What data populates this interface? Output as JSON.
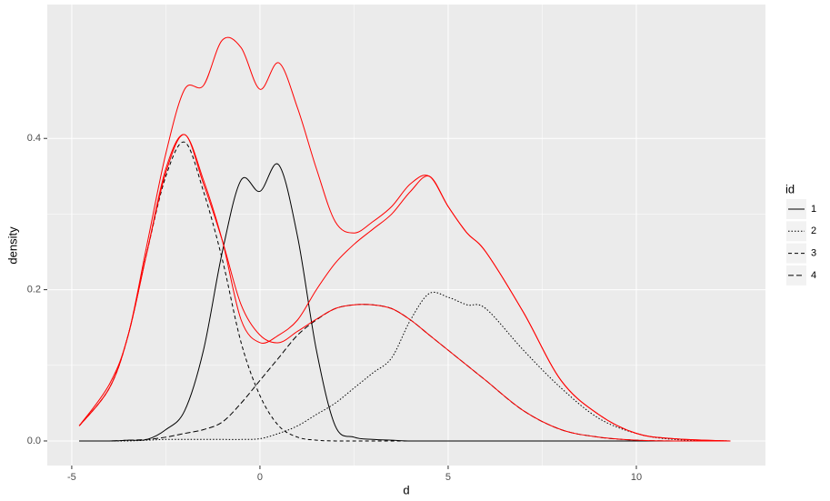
{
  "chart_data": {
    "type": "line",
    "x_label": "d",
    "y_label": "density",
    "legend_title": "id",
    "x": [
      -4.8,
      -4,
      -3.5,
      -3,
      -2.5,
      -2,
      -1.5,
      -1,
      -0.5,
      0,
      0.5,
      1,
      1.5,
      2,
      2.5,
      3,
      3.5,
      4,
      4.5,
      5,
      5.5,
      6,
      7,
      8,
      9,
      10,
      11,
      12.5
    ],
    "series": [
      {
        "name": "1",
        "color": "#000000",
        "linetype": "solid",
        "values": [
          0,
          0,
          0.001,
          0.002,
          0.015,
          0.04,
          0.12,
          0.25,
          0.345,
          0.33,
          0.365,
          0.27,
          0.12,
          0.02,
          0.005,
          0.002,
          0.001,
          0,
          0,
          0,
          0,
          0,
          0,
          0,
          0,
          0,
          0,
          0
        ]
      },
      {
        "name": "2",
        "color": "#000000",
        "linetype": "dotted",
        "values": [
          0,
          0,
          0,
          0.001,
          0.002,
          0.002,
          0.002,
          0.002,
          0.002,
          0.003,
          0.01,
          0.02,
          0.035,
          0.05,
          0.07,
          0.09,
          0.11,
          0.16,
          0.195,
          0.19,
          0.18,
          0.175,
          0.12,
          0.07,
          0.03,
          0.01,
          0.002,
          0
        ]
      },
      {
        "name": "3",
        "color": "#000000",
        "linetype": "dashed",
        "values": [
          0.02,
          0.07,
          0.14,
          0.25,
          0.35,
          0.395,
          0.33,
          0.24,
          0.13,
          0.06,
          0.02,
          0.005,
          0.001,
          0,
          0,
          0,
          0,
          0,
          0,
          0,
          0,
          0,
          0,
          0,
          0,
          0,
          0,
          0
        ]
      },
      {
        "name": "4",
        "color": "#000000",
        "linetype": "longdash",
        "values": [
          0,
          0,
          0.001,
          0.002,
          0.005,
          0.01,
          0.015,
          0.025,
          0.05,
          0.08,
          0.11,
          0.14,
          0.16,
          0.175,
          0.18,
          0.18,
          0.175,
          0.16,
          0.14,
          0.12,
          0.1,
          0.08,
          0.04,
          0.015,
          0.005,
          0.001,
          0,
          0
        ]
      },
      {
        "color": "#ff0000",
        "linetype": "solid",
        "values": [
          0.02,
          0.075,
          0.14,
          0.26,
          0.38,
          0.465,
          0.47,
          0.53,
          0.52,
          0.465,
          0.5,
          0.44,
          0.36,
          0.29,
          0.275,
          0.29,
          0.31,
          0.34,
          0.35,
          0.31,
          0.275,
          0.25,
          0.17,
          0.08,
          0.035,
          0.01,
          0.003,
          0
        ]
      },
      {
        "color": "#ff0000",
        "linetype": "solid",
        "values": [
          0.02,
          0.07,
          0.14,
          0.25,
          0.36,
          0.405,
          0.345,
          0.265,
          0.16,
          0.13,
          0.14,
          0.16,
          0.2,
          0.235,
          0.26,
          0.28,
          0.3,
          0.33,
          0.35,
          0.31,
          0.275,
          0.25,
          0.17,
          0.08,
          0.035,
          0.01,
          0.003,
          0
        ]
      },
      {
        "color": "#ff0000",
        "linetype": "solid",
        "values": [
          0.02,
          0.07,
          0.14,
          0.25,
          0.355,
          0.405,
          0.34,
          0.265,
          0.18,
          0.14,
          0.13,
          0.145,
          0.161,
          0.175,
          0.18,
          0.18,
          0.175,
          0.16,
          0.14,
          0.12,
          0.1,
          0.08,
          0.04,
          0.015,
          0.005,
          0.001,
          0,
          0
        ]
      }
    ],
    "xlim": [
      -5.65,
      13.43
    ],
    "ylim": [
      -0.0325,
      0.577
    ],
    "xticks": [
      -5,
      0,
      5,
      10
    ],
    "yticks": [
      {
        "value": 0,
        "label": "0.0"
      },
      0.2,
      0.4
    ],
    "grid": true
  }
}
